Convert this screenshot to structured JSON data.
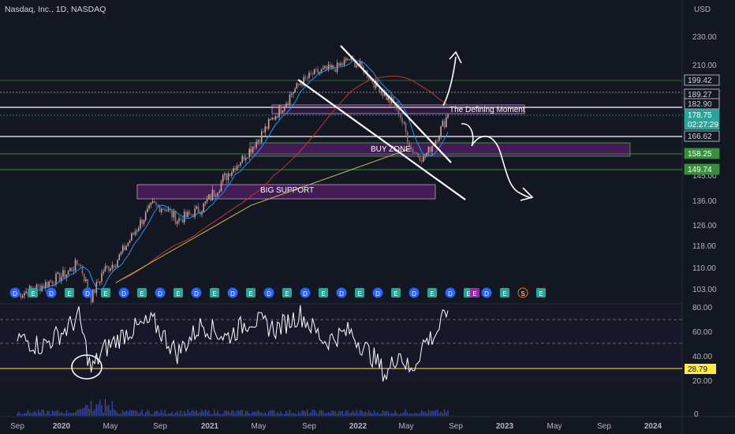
{
  "header": {
    "title": "Nasdaq, Inc., 1D, NASDAQ"
  },
  "axis": {
    "currency": "USD",
    "price_ticks": [
      "230.00",
      "210.00",
      "189.27",
      "166.62",
      "145.00",
      "136.00",
      "126.00",
      "118.00",
      "110.00",
      "103.00"
    ],
    "rsi_ticks": [
      "80.00",
      "60.00",
      "40.00",
      "20.00"
    ],
    "volume_tick": "0",
    "time_ticks": [
      "Sep",
      "2020",
      "May",
      "Sep",
      "2021",
      "May",
      "Sep",
      "2022",
      "May",
      "Sep",
      "2023",
      "May",
      "Sep",
      "2024"
    ]
  },
  "price_labels": [
    {
      "text": "199.42",
      "style": "outline"
    },
    {
      "text": "189.27",
      "style": "outline"
    },
    {
      "text": "182.90",
      "style": "outline"
    },
    {
      "text": "178.75",
      "style": "accent"
    },
    {
      "text": "02:27:29",
      "style": "accent"
    },
    {
      "text": "166.62",
      "style": "outline"
    },
    {
      "text": "158.25",
      "style": "green"
    },
    {
      "text": "149.74",
      "style": "green"
    }
  ],
  "rsi_label": "28.79",
  "annotations": {
    "defining_moment": "The Defining Moment",
    "buy_zone": "BUY ZONE",
    "big_support": "BIG SUPPORT"
  },
  "events": [
    "D",
    "E",
    "D",
    "E",
    "D",
    "E",
    "D",
    "E",
    "D",
    "E",
    "D",
    "E",
    "D",
    "E",
    "D",
    "E",
    "D",
    "E",
    "D",
    "E",
    "D",
    "E",
    "D",
    "E",
    "D",
    "E",
    "D",
    "E",
    "S",
    "E"
  ],
  "colors": {
    "background": "#131722",
    "candle": "#b39999",
    "ma_red": "#c0392b",
    "ma_yellow": "#c9b458",
    "ma_blue": "#2196f3",
    "zone_purple": "#9c27b0",
    "zone_green": "#4caf50",
    "accent_label": "#26a69a",
    "rsi_line": "#ffffff",
    "rsi_label_bg": "#ffeb3b"
  },
  "chart_data": {
    "type": "candlestick",
    "ticker": "Nasdaq, Inc.",
    "interval": "1D",
    "exchange": "NASDAQ",
    "ylim": [
      100,
      240
    ],
    "x": [
      "2019-09",
      "2019-11",
      "2020-01",
      "2020-02",
      "2020-03",
      "2020-04",
      "2020-05",
      "2020-06",
      "2020-07",
      "2020-08",
      "2020-09",
      "2020-10",
      "2020-11",
      "2020-12",
      "2021-01",
      "2021-02",
      "2021-03",
      "2021-04",
      "2021-05",
      "2021-06",
      "2021-07",
      "2021-08",
      "2021-09",
      "2021-10",
      "2021-11",
      "2021-12",
      "2022-01",
      "2022-02",
      "2022-03",
      "2022-04",
      "2022-05",
      "2022-06",
      "2022-07",
      "2022-08"
    ],
    "close": [
      101,
      104,
      108,
      112,
      100,
      109,
      112,
      119,
      127,
      134,
      133,
      128,
      130,
      133,
      139,
      145,
      152,
      160,
      169,
      178,
      186,
      196,
      203,
      206,
      208,
      214,
      208,
      196,
      187,
      180,
      160,
      154,
      165,
      178
    ],
    "levels": [
      199.42,
      189.27,
      182.9,
      178.75,
      166.62,
      158.25,
      149.74
    ],
    "rsi": {
      "x": [
        "2019-09",
        "2019-11",
        "2020-01",
        "2020-02",
        "2020-03",
        "2020-04",
        "2020-06",
        "2020-08",
        "2020-10",
        "2020-12",
        "2021-02",
        "2021-04",
        "2021-06",
        "2021-08",
        "2021-10",
        "2021-12",
        "2022-02",
        "2022-03",
        "2022-04",
        "2022-05",
        "2022-06",
        "2022-07",
        "2022-08"
      ],
      "values": [
        55,
        48,
        62,
        72,
        28,
        45,
        60,
        68,
        42,
        66,
        55,
        70,
        62,
        74,
        52,
        60,
        38,
        24,
        44,
        26,
        50,
        58,
        77
      ],
      "current": 28.79,
      "ylim": [
        10,
        90
      ]
    }
  }
}
